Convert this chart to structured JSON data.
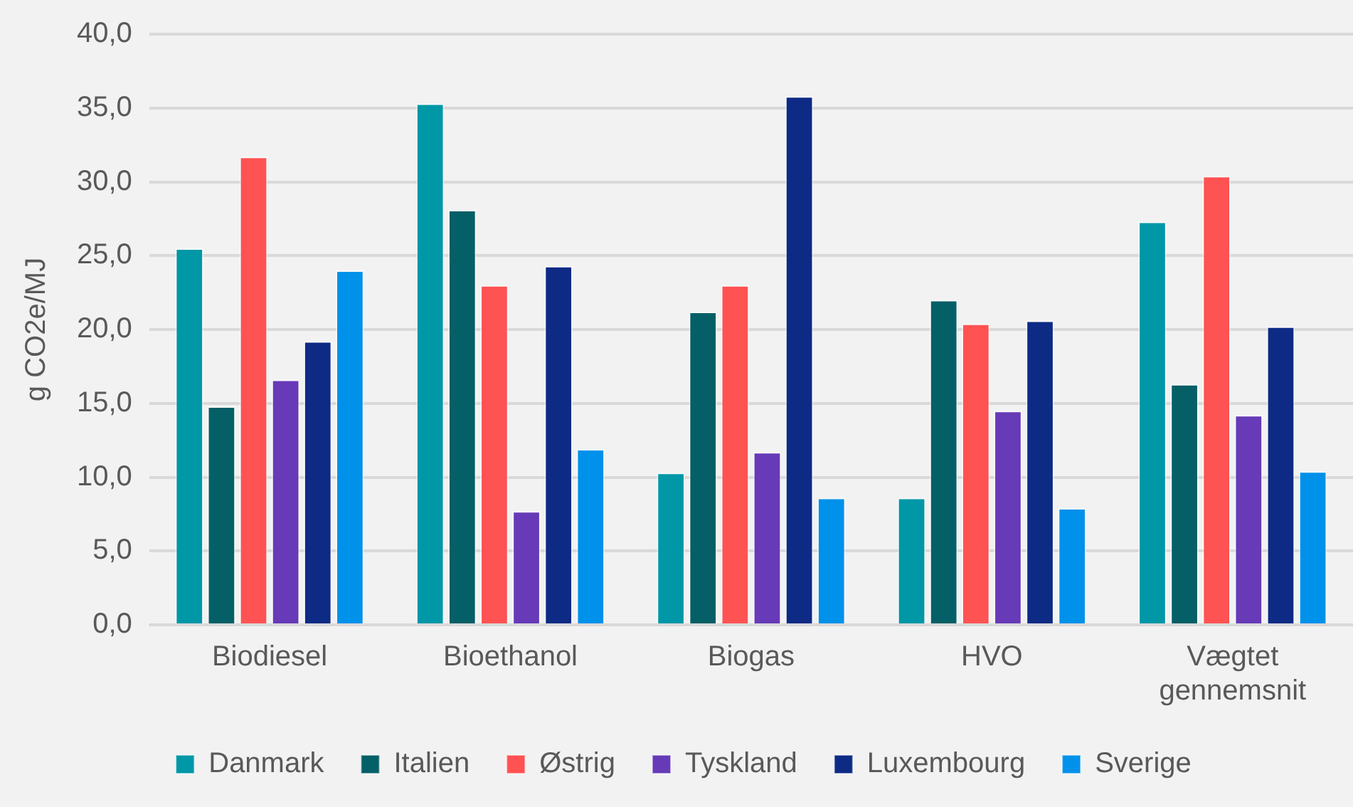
{
  "chart_data": {
    "type": "bar",
    "ylabel": "g CO2e/MJ",
    "categories": [
      "Biodiesel",
      "Bioethanol",
      "Biogas",
      "HVO",
      "Vægtet gennemsnit"
    ],
    "series": [
      {
        "name": "Danmark",
        "color": "#0097a7",
        "values": [
          25.5,
          35.3,
          10.3,
          8.6,
          27.3
        ]
      },
      {
        "name": "Italien",
        "color": "#055f66",
        "values": [
          14.8,
          28.1,
          21.2,
          22.0,
          16.3
        ]
      },
      {
        "name": "Østrig",
        "color": "#ff5252",
        "values": [
          31.7,
          23.0,
          23.0,
          20.4,
          30.4
        ]
      },
      {
        "name": "Tyskland",
        "color": "#673ab7",
        "values": [
          16.6,
          7.7,
          11.7,
          14.5,
          14.2
        ]
      },
      {
        "name": "Luxembourg",
        "color": "#0d2b85",
        "values": [
          19.2,
          24.3,
          35.8,
          20.6,
          20.2
        ]
      },
      {
        "name": "Sverige",
        "color": "#0091ea",
        "values": [
          24.0,
          11.9,
          8.6,
          7.9,
          10.4
        ]
      }
    ],
    "ylim": [
      0,
      40
    ],
    "yticks": [
      {
        "value": 0,
        "label": "0,0"
      },
      {
        "value": 5,
        "label": "5,0"
      },
      {
        "value": 10,
        "label": "10,0"
      },
      {
        "value": 15,
        "label": "15,0"
      },
      {
        "value": 20,
        "label": "20,0"
      },
      {
        "value": 25,
        "label": "25,0"
      },
      {
        "value": 30,
        "label": "30,0"
      },
      {
        "value": 35,
        "label": "35,0"
      },
      {
        "value": 40,
        "label": "40,0"
      }
    ],
    "grid": "y",
    "legend": "bottom"
  }
}
